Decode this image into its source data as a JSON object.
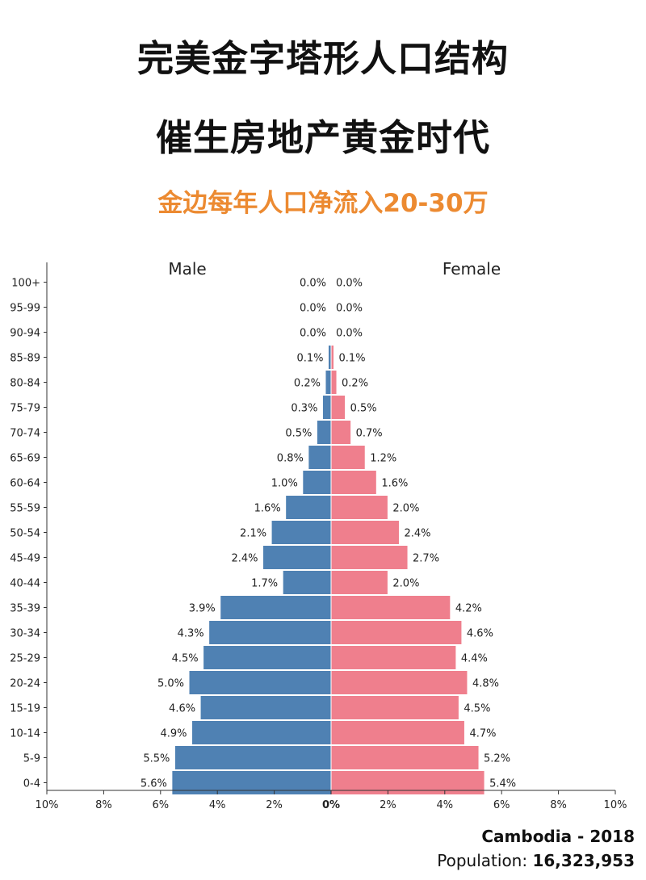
{
  "headline": {
    "line1": "完美金字塔形人口结构",
    "line2": "催生房地产黄金时代",
    "subline": "金边每年人口净流入20-30万"
  },
  "colors": {
    "male": "#4f81b3",
    "female": "#ef7f8d",
    "accent": "#ec8a31",
    "text": "#111111"
  },
  "footer": {
    "country_year": "Cambodia - 2018",
    "population_label": "Population:",
    "population_value": "16,323,953"
  },
  "chart_data": {
    "type": "bar",
    "orientation": "horizontal-pyramid",
    "categories": [
      "100+",
      "95-99",
      "90-94",
      "85-89",
      "80-84",
      "75-79",
      "70-74",
      "65-69",
      "60-64",
      "55-59",
      "50-54",
      "45-49",
      "40-44",
      "35-39",
      "30-34",
      "25-29",
      "20-24",
      "15-19",
      "10-14",
      "5-9",
      "0-4"
    ],
    "series": [
      {
        "name": "Male",
        "values": [
          0.0,
          0.0,
          0.0,
          0.1,
          0.2,
          0.3,
          0.5,
          0.8,
          1.0,
          1.6,
          2.1,
          2.4,
          1.7,
          3.9,
          4.3,
          4.5,
          5.0,
          4.6,
          4.9,
          5.5,
          5.6
        ]
      },
      {
        "name": "Female",
        "values": [
          0.0,
          0.0,
          0.0,
          0.1,
          0.2,
          0.5,
          0.7,
          1.2,
          1.6,
          2.0,
          2.4,
          2.7,
          2.0,
          4.2,
          4.6,
          4.4,
          4.8,
          4.5,
          4.7,
          5.2,
          5.4
        ]
      }
    ],
    "value_labels": {
      "male": [
        "0.0%",
        "0.0%",
        "0.0%",
        "0.1%",
        "0.2%",
        "0.3%",
        "0.5%",
        "0.8%",
        "1.0%",
        "1.6%",
        "2.1%",
        "2.4%",
        "1.7%",
        "3.9%",
        "4.3%",
        "4.5%",
        "5.0%",
        "4.6%",
        "4.9%",
        "5.5%",
        "5.6%"
      ],
      "female": [
        "0.0%",
        "0.0%",
        "0.0%",
        "0.1%",
        "0.2%",
        "0.5%",
        "0.7%",
        "1.2%",
        "1.6%",
        "2.0%",
        "2.4%",
        "2.7%",
        "2.0%",
        "4.2%",
        "4.6%",
        "4.4%",
        "4.8%",
        "4.5%",
        "4.7%",
        "5.2%",
        "5.4%"
      ]
    },
    "xlim": [
      -10,
      10
    ],
    "x_ticks": [
      -10,
      -8,
      -6,
      -4,
      -2,
      0,
      2,
      4,
      6,
      8,
      10
    ],
    "x_tick_labels": [
      "10%",
      "8%",
      "6%",
      "4%",
      "2%",
      "0%",
      "2%",
      "4%",
      "6%",
      "8%",
      "10%"
    ],
    "xlabel": "",
    "ylabel": "",
    "grid": false
  }
}
